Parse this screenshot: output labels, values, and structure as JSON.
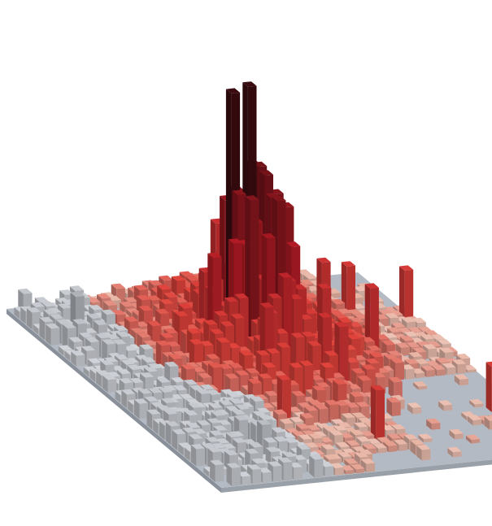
{
  "map": {
    "style": "3d-hexbin-extrusion",
    "grid": {
      "cols": 34,
      "rows": 34
    },
    "peak": {
      "col": 17,
      "row": 12
    },
    "colors": {
      "background": "#ffffff",
      "ground_top": "#b4bac4",
      "ground_left": "#8a9099",
      "ground_right": "#9aa0a8",
      "ramp_low": "#e8b3a3",
      "ramp_mid": "#e0443c",
      "ramp_high": "#b11a24",
      "ramp_peak": "#3a0c10",
      "gray_top": "#d6d9de",
      "gray_dark": "#7c8189"
    }
  }
}
